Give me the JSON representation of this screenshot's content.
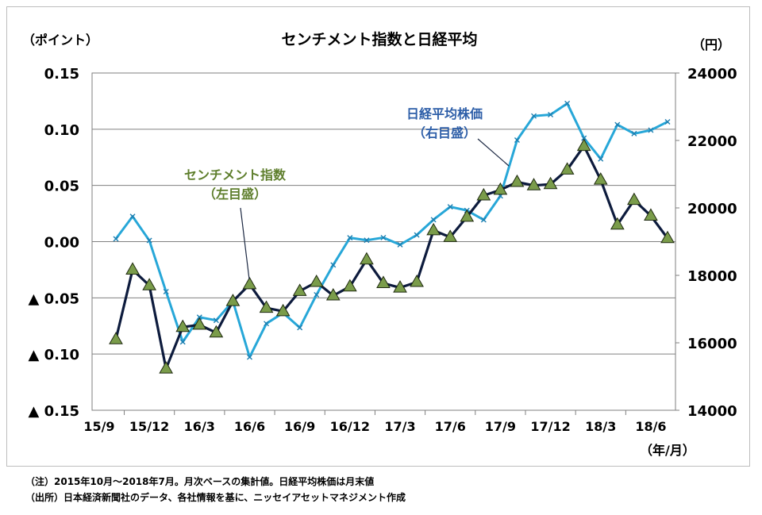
{
  "chart_data": {
    "type": "line",
    "title": "センチメント指数と日経平均",
    "left_unit": "（ポイント）",
    "right_unit": "（円）",
    "x_unit": "（年/月）",
    "x_ticks": [
      "15/9",
      "15/12",
      "16/3",
      "16/6",
      "16/9",
      "16/12",
      "17/3",
      "17/6",
      "17/9",
      "17/12",
      "18/3",
      "18/6"
    ],
    "y_left_ticks": [
      "0.15",
      "0.10",
      "0.05",
      "0.00",
      "▲ 0.05",
      "▲ 0.10",
      "▲ 0.15"
    ],
    "y_right_ticks": [
      "24000",
      "22000",
      "20000",
      "18000",
      "16000",
      "14000"
    ],
    "ylim_left": [
      -0.15,
      0.15
    ],
    "ylim_right": [
      14000,
      24000
    ],
    "x": [
      "2015-10",
      "2015-11",
      "2015-12",
      "2016-01",
      "2016-02",
      "2016-03",
      "2016-04",
      "2016-05",
      "2016-06",
      "2016-07",
      "2016-08",
      "2016-09",
      "2016-10",
      "2016-11",
      "2016-12",
      "2017-01",
      "2017-02",
      "2017-03",
      "2017-04",
      "2017-05",
      "2017-06",
      "2017-07",
      "2017-08",
      "2017-09",
      "2017-10",
      "2017-11",
      "2017-12",
      "2018-01",
      "2018-02",
      "2018-03",
      "2018-04",
      "2018-05",
      "2018-06",
      "2018-07"
    ],
    "grid": "horizontal",
    "series": [
      {
        "name": "センチメント指数",
        "label_line1": "センチメント指数",
        "label_line2": "（左目盛）",
        "axis": "left",
        "color": "#0d1b3d",
        "marker_color": "#7a9c4a",
        "label_color": "#5e7e2c",
        "values": [
          -0.087,
          -0.025,
          -0.039,
          -0.113,
          -0.076,
          -0.074,
          -0.081,
          -0.053,
          -0.038,
          -0.059,
          -0.062,
          -0.044,
          -0.036,
          -0.048,
          -0.04,
          -0.016,
          -0.037,
          -0.041,
          -0.036,
          0.01,
          0.004,
          0.022,
          0.041,
          0.046,
          0.053,
          0.05,
          0.051,
          0.064,
          0.085,
          0.055,
          0.015,
          0.037,
          0.023,
          0.003
        ]
      },
      {
        "name": "日経平均株価",
        "label_line1": "日経平均株価",
        "label_line2": "（右目盛）",
        "axis": "right",
        "color": "#27a7d8",
        "label_color": "#2d5ea8",
        "values": [
          19083,
          19747,
          19034,
          17518,
          16027,
          16759,
          16666,
          17235,
          15576,
          16569,
          16887,
          16450,
          17425,
          18308,
          19114,
          19041,
          19119,
          18909,
          19197,
          19651,
          20033,
          19925,
          19646,
          20356,
          22012,
          22725,
          22765,
          23098,
          22068,
          21454,
          22468,
          22202,
          22305,
          22554
        ]
      }
    ]
  },
  "notes": {
    "line1": "（注）2015年10月～2018年7月。月次ベースの集計値。日経平均株価は月末値",
    "line2": "（出所）日本経済新聞社のデータ、各社情報を基に、ニッセイアセットマネジメント作成"
  }
}
